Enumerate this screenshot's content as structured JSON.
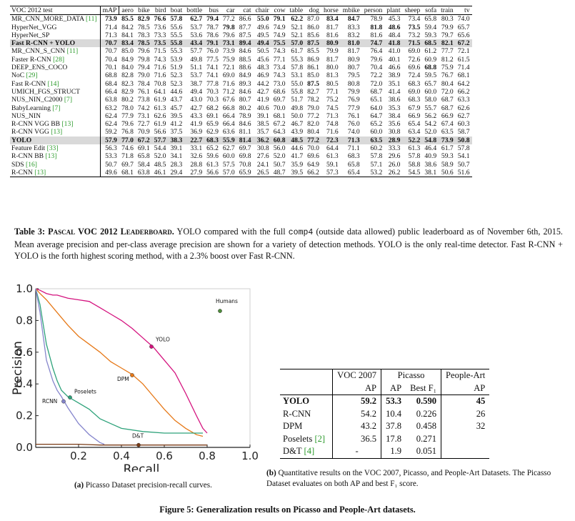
{
  "table3": {
    "headers": [
      "VOC 2012 test",
      "mAP",
      "aero",
      "bike",
      "bird",
      "boat",
      "bottle",
      "bus",
      "car",
      "cat",
      "chair",
      "cow",
      "table",
      "dog",
      "horse",
      "mbike",
      "person",
      "plant",
      "sheep",
      "sofa",
      "train",
      "tv"
    ],
    "rows": [
      {
        "name": "MR_CNN_MORE_DATA ",
        "cite": "[11]",
        "values": [
          "73.9",
          "85.5",
          "82.9",
          "76.6",
          "57.8",
          "62.7",
          "79.4",
          "77.2",
          "86.6",
          "55.0",
          "79.1",
          "62.2",
          "87.0",
          "83.4",
          "84.7",
          "78.9",
          "45.3",
          "73.4",
          "65.8",
          "80.3",
          "74.0"
        ],
        "bold": [
          0,
          1,
          2,
          3,
          4,
          5,
          6,
          9,
          10,
          11,
          13,
          14
        ],
        "highlight": false
      },
      {
        "name": "HyperNet_VGG",
        "cite": "",
        "values": [
          "71.4",
          "84.2",
          "78.5",
          "73.6",
          "55.6",
          "53.7",
          "78.7",
          "79.8",
          "87.7",
          "49.6",
          "74.9",
          "52.1",
          "86.0",
          "81.7",
          "83.3",
          "81.8",
          "48.6",
          "73.5",
          "59.4",
          "79.9",
          "65.7"
        ],
        "bold": [
          7,
          15,
          16,
          17
        ],
        "highlight": false
      },
      {
        "name": "HyperNet_SP",
        "cite": "",
        "values": [
          "71.3",
          "84.1",
          "78.3",
          "73.3",
          "55.5",
          "53.6",
          "78.6",
          "79.6",
          "87.5",
          "49.5",
          "74.9",
          "52.1",
          "85.6",
          "81.6",
          "83.2",
          "81.6",
          "48.4",
          "73.2",
          "59.3",
          "79.7",
          "65.6"
        ],
        "bold": [],
        "highlight": false
      },
      {
        "name": "Fast R-CNN + YOLO",
        "cite": "",
        "values": [
          "70.7",
          "83.4",
          "78.5",
          "73.5",
          "55.8",
          "43.4",
          "79.1",
          "73.1",
          "89.4",
          "49.4",
          "75.5",
          "57.0",
          "87.5",
          "80.9",
          "81.0",
          "74.7",
          "41.8",
          "71.5",
          "68.5",
          "82.1",
          "67.2"
        ],
        "bold": [
          8,
          12,
          19
        ],
        "highlight": true
      },
      {
        "name": "MR_CNN_S_CNN ",
        "cite": "[11]",
        "values": [
          "70.7",
          "85.0",
          "79.6",
          "71.5",
          "55.3",
          "57.7",
          "76.0",
          "73.9",
          "84.6",
          "50.5",
          "74.3",
          "61.7",
          "85.5",
          "79.9",
          "81.7",
          "76.4",
          "41.0",
          "69.0",
          "61.2",
          "77.7",
          "72.1"
        ],
        "bold": [],
        "highlight": false
      },
      {
        "name": "Faster R-CNN ",
        "cite": "[28]",
        "values": [
          "70.4",
          "84.9",
          "79.8",
          "74.3",
          "53.9",
          "49.8",
          "77.5",
          "75.9",
          "88.5",
          "45.6",
          "77.1",
          "55.3",
          "86.9",
          "81.7",
          "80.9",
          "79.6",
          "40.1",
          "72.6",
          "60.9",
          "81.2",
          "61.5"
        ],
        "bold": [],
        "highlight": false
      },
      {
        "name": "DEEP_ENS_COCO",
        "cite": "",
        "values": [
          "70.1",
          "84.0",
          "79.4",
          "71.6",
          "51.9",
          "51.1",
          "74.1",
          "72.1",
          "88.6",
          "48.3",
          "73.4",
          "57.8",
          "86.1",
          "80.0",
          "80.7",
          "70.4",
          "46.6",
          "69.6",
          "68.8",
          "75.9",
          "71.4"
        ],
        "bold": [
          18
        ],
        "highlight": false
      },
      {
        "name": "NoC ",
        "cite": "[29]",
        "values": [
          "68.8",
          "82.8",
          "79.0",
          "71.6",
          "52.3",
          "53.7",
          "74.1",
          "69.0",
          "84.9",
          "46.9",
          "74.3",
          "53.1",
          "85.0",
          "81.3",
          "79.5",
          "72.2",
          "38.9",
          "72.4",
          "59.5",
          "76.7",
          "68.1"
        ],
        "bold": [],
        "highlight": false
      },
      {
        "name": "Fast R-CNN ",
        "cite": "[14]",
        "values": [
          "68.4",
          "82.3",
          "78.4",
          "70.8",
          "52.3",
          "38.7",
          "77.8",
          "71.6",
          "89.3",
          "44.2",
          "73.0",
          "55.0",
          "87.5",
          "80.5",
          "80.8",
          "72.0",
          "35.1",
          "68.3",
          "65.7",
          "80.4",
          "64.2"
        ],
        "bold": [
          12
        ],
        "highlight": false
      },
      {
        "name": "UMICH_FGS_STRUCT",
        "cite": "",
        "values": [
          "66.4",
          "82.9",
          "76.1",
          "64.1",
          "44.6",
          "49.4",
          "70.3",
          "71.2",
          "84.6",
          "42.7",
          "68.6",
          "55.8",
          "82.7",
          "77.1",
          "79.9",
          "68.7",
          "41.4",
          "69.0",
          "60.0",
          "72.0",
          "66.2"
        ],
        "bold": [],
        "highlight": false
      },
      {
        "name": "NUS_NIN_C2000 ",
        "cite": "[7]",
        "values": [
          "63.8",
          "80.2",
          "73.8",
          "61.9",
          "43.7",
          "43.0",
          "70.3",
          "67.6",
          "80.7",
          "41.9",
          "69.7",
          "51.7",
          "78.2",
          "75.2",
          "76.9",
          "65.1",
          "38.6",
          "68.3",
          "58.0",
          "68.7",
          "63.3"
        ],
        "bold": [],
        "highlight": false
      },
      {
        "name": "BabyLearning ",
        "cite": "[7]",
        "values": [
          "63.2",
          "78.0",
          "74.2",
          "61.3",
          "45.7",
          "42.7",
          "68.2",
          "66.8",
          "80.2",
          "40.6",
          "70.0",
          "49.8",
          "79.0",
          "74.5",
          "77.9",
          "64.0",
          "35.3",
          "67.9",
          "55.7",
          "68.7",
          "62.6"
        ],
        "bold": [],
        "highlight": false
      },
      {
        "name": "NUS_NIN",
        "cite": "",
        "values": [
          "62.4",
          "77.9",
          "73.1",
          "62.6",
          "39.5",
          "43.3",
          "69.1",
          "66.4",
          "78.9",
          "39.1",
          "68.1",
          "50.0",
          "77.2",
          "71.3",
          "76.1",
          "64.7",
          "38.4",
          "66.9",
          "56.2",
          "66.9",
          "62.7"
        ],
        "bold": [],
        "highlight": false
      },
      {
        "name": "R-CNN VGG BB ",
        "cite": "[13]",
        "values": [
          "62.4",
          "79.6",
          "72.7",
          "61.9",
          "41.2",
          "41.9",
          "65.9",
          "66.4",
          "84.6",
          "38.5",
          "67.2",
          "46.7",
          "82.0",
          "74.8",
          "76.0",
          "65.2",
          "35.6",
          "65.4",
          "54.2",
          "67.4",
          "60.3"
        ],
        "bold": [],
        "highlight": false
      },
      {
        "name": "R-CNN VGG ",
        "cite": "[13]",
        "values": [
          "59.2",
          "76.8",
          "70.9",
          "56.6",
          "37.5",
          "36.9",
          "62.9",
          "63.6",
          "81.1",
          "35.7",
          "64.3",
          "43.9",
          "80.4",
          "71.6",
          "74.0",
          "60.0",
          "30.8",
          "63.4",
          "52.0",
          "63.5",
          "58.7"
        ],
        "bold": [],
        "highlight": false
      },
      {
        "name": "YOLO",
        "cite": "",
        "values": [
          "57.9",
          "77.0",
          "67.2",
          "57.7",
          "38.3",
          "22.7",
          "68.3",
          "55.9",
          "81.4",
          "36.2",
          "60.8",
          "48.5",
          "77.2",
          "72.3",
          "71.3",
          "63.5",
          "28.9",
          "52.2",
          "54.8",
          "73.9",
          "50.8"
        ],
        "bold": [],
        "highlight": true
      },
      {
        "name": "Feature Edit ",
        "cite": "[33]",
        "values": [
          "56.3",
          "74.6",
          "69.1",
          "54.4",
          "39.1",
          "33.1",
          "65.2",
          "62.7",
          "69.7",
          "30.8",
          "56.0",
          "44.6",
          "70.0",
          "64.4",
          "71.1",
          "60.2",
          "33.3",
          "61.3",
          "46.4",
          "61.7",
          "57.8"
        ],
        "bold": [],
        "highlight": false
      },
      {
        "name": "R-CNN BB ",
        "cite": "[13]",
        "values": [
          "53.3",
          "71.8",
          "65.8",
          "52.0",
          "34.1",
          "32.6",
          "59.6",
          "60.0",
          "69.8",
          "27.6",
          "52.0",
          "41.7",
          "69.6",
          "61.3",
          "68.3",
          "57.8",
          "29.6",
          "57.8",
          "40.9",
          "59.3",
          "54.1"
        ],
        "bold": [],
        "highlight": false
      },
      {
        "name": "SDS ",
        "cite": "[16]",
        "values": [
          "50.7",
          "69.7",
          "58.4",
          "48.5",
          "28.3",
          "28.8",
          "61.3",
          "57.5",
          "70.8",
          "24.1",
          "50.7",
          "35.9",
          "64.9",
          "59.1",
          "65.8",
          "57.1",
          "26.0",
          "58.8",
          "38.6",
          "58.9",
          "50.7"
        ],
        "bold": [],
        "highlight": false
      },
      {
        "name": "R-CNN ",
        "cite": "[13]",
        "values": [
          "49.6",
          "68.1",
          "63.8",
          "46.1",
          "29.4",
          "27.9",
          "56.6",
          "57.0",
          "65.9",
          "26.5",
          "48.7",
          "39.5",
          "66.2",
          "57.3",
          "65.4",
          "53.2",
          "26.2",
          "54.5",
          "38.1",
          "50.6",
          "51.6"
        ],
        "bold": [],
        "highlight": false
      }
    ],
    "caption": {
      "label": "Table 3: ",
      "name": "Pascal VOC 2012 Leaderboard.",
      "text1": " YOLO compared with the full ",
      "code": "comp4",
      "text2": " (outside data allowed) public leaderboard as of November 6th, 2015. Mean average precision and per-class average precision are shown for a variety of detection methods. YOLO is the only real-time detector. Fast R-CNN + YOLO is the forth highest scoring method, with a 2.3% boost over Fast R-CNN."
    }
  },
  "chart_data": {
    "type": "line",
    "xlabel": "Recall",
    "ylabel": "Precision",
    "xlim": [
      0,
      1.0
    ],
    "ylim": [
      0,
      1.0
    ],
    "xticks": [
      "0.2",
      "0.4",
      "0.6",
      "0.8",
      "1.0"
    ],
    "yticks": [
      "0.0",
      "0.2",
      "0.4",
      "0.6",
      "0.8",
      "1.0"
    ],
    "grid": false,
    "series": [
      {
        "name": "YOLO",
        "color": "#d4127e",
        "label_at": [
          0.56,
          0.67
        ],
        "marker": [
          0.54,
          0.635
        ],
        "x": [
          0,
          0.02,
          0.05,
          0.08,
          0.1,
          0.15,
          0.2,
          0.25,
          0.3,
          0.35,
          0.4,
          0.45,
          0.5,
          0.55,
          0.6,
          0.65,
          0.7,
          0.75,
          0.78,
          0.8
        ],
        "y": [
          1.0,
          0.99,
          0.97,
          0.96,
          0.96,
          0.94,
          0.93,
          0.92,
          0.88,
          0.84,
          0.8,
          0.75,
          0.69,
          0.63,
          0.55,
          0.47,
          0.34,
          0.2,
          0.12,
          0.09
        ]
      },
      {
        "name": "DPM",
        "color": "#e67817",
        "label_at": [
          0.38,
          0.42
        ],
        "marker": [
          0.45,
          0.455
        ],
        "x": [
          0,
          0.02,
          0.05,
          0.1,
          0.15,
          0.2,
          0.25,
          0.3,
          0.35,
          0.4,
          0.45,
          0.5,
          0.55,
          0.6,
          0.65,
          0.7,
          0.75,
          0.78
        ],
        "y": [
          1.0,
          0.97,
          0.93,
          0.85,
          0.77,
          0.7,
          0.65,
          0.6,
          0.54,
          0.5,
          0.46,
          0.4,
          0.32,
          0.24,
          0.17,
          0.12,
          0.08,
          0.07
        ]
      },
      {
        "name": "Poselets",
        "color": "#2ea27a",
        "label_at": [
          0.18,
          0.34
        ],
        "marker": [
          0.16,
          0.315
        ],
        "x": [
          0,
          0.02,
          0.05,
          0.08,
          0.1,
          0.12,
          0.15,
          0.2,
          0.25,
          0.3,
          0.35,
          0.4,
          0.5,
          0.6,
          0.7,
          0.78
        ],
        "y": [
          1.0,
          0.9,
          0.65,
          0.5,
          0.42,
          0.36,
          0.32,
          0.28,
          0.24,
          0.18,
          0.15,
          0.12,
          0.1,
          0.09,
          0.09,
          0.09
        ]
      },
      {
        "name": "RCNN",
        "color": "#8585cc",
        "label_at": [
          0.03,
          0.28
        ],
        "marker": [
          0.13,
          0.29
        ],
        "x": [
          0,
          0.02,
          0.05,
          0.08,
          0.1,
          0.12,
          0.15,
          0.2,
          0.25,
          0.3,
          0.32
        ],
        "y": [
          1.0,
          0.85,
          0.55,
          0.42,
          0.36,
          0.32,
          0.25,
          0.15,
          0.08,
          0.03,
          0.02
        ]
      },
      {
        "name": "D&T",
        "color": "#7a3b16",
        "label_at": [
          0.45,
          0.06
        ],
        "marker": [
          0.48,
          0.015
        ],
        "x": [
          0,
          0.1,
          0.2,
          0.3,
          0.4,
          0.5,
          0.6,
          0.7,
          0.8
        ],
        "y": [
          0.02,
          0.02,
          0.02,
          0.015,
          0.015,
          0.015,
          0.015,
          0.015,
          0.015
        ]
      },
      {
        "name": "Humans",
        "color": "#4e8c3a",
        "label_at": [
          0.84,
          0.91
        ],
        "marker": [
          0.86,
          0.86
        ],
        "x": [
          0.86
        ],
        "y": [
          0.86
        ]
      }
    ]
  },
  "caption_a": {
    "label": "(a)",
    "text": " Picasso Dataset precision-recall curves."
  },
  "picasso": {
    "group_headers": [
      "VOC 2007",
      "Picasso",
      "People-Art"
    ],
    "sub_headers": [
      "AP",
      "AP",
      "Best F₁",
      "AP"
    ],
    "rows": [
      {
        "name": "YOLO",
        "cite": "",
        "cells": [
          "59.2",
          "53.3",
          "0.590",
          "45"
        ]
      },
      {
        "name": "R-CNN",
        "cite": "",
        "cells": [
          "54.2",
          "10.4",
          "0.226",
          "26"
        ]
      },
      {
        "name": "DPM",
        "cite": "",
        "cells": [
          "43.2",
          "37.8",
          "0.458",
          "32"
        ]
      },
      {
        "name": "Poselets ",
        "cite": "[2]",
        "cells": [
          "36.5",
          "17.8",
          "0.271",
          ""
        ]
      },
      {
        "name": "D&T ",
        "cite": "[4]",
        "cells": [
          "-",
          "1.9",
          "0.051",
          ""
        ]
      }
    ]
  },
  "caption_b": {
    "label": "(b)",
    "text": " Quantitative results on the VOC 2007, Picasso, and People-Art Datasets. The Picasso Dataset evaluates on both AP and best F₁ score."
  },
  "figure5": {
    "text": "Figure 5: Generalization results on Picasso and People-Art datasets."
  }
}
